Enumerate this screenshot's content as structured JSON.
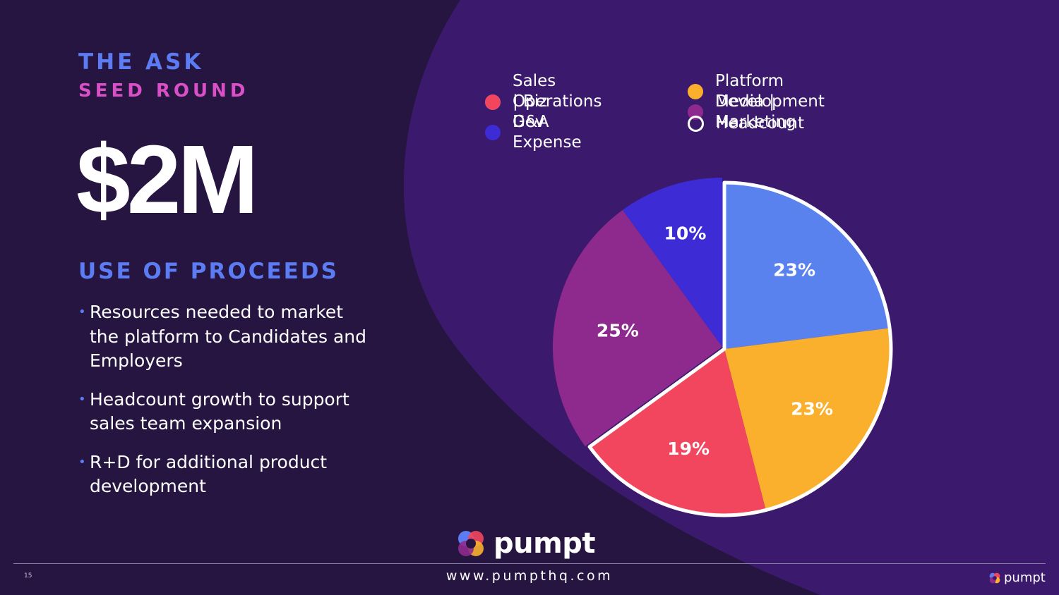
{
  "slide": {
    "title": "THE ASK",
    "subtitle": "SEED ROUND",
    "amount": "$2M",
    "proceeds_title": "USE OF PROCEEDS",
    "bullets": [
      "Resources needed to market the platform to Candidates and Employers",
      "Headcount growth to support sales team expansion",
      "R+D for additional product development"
    ],
    "bullet_marker": "•",
    "page_number": "15",
    "website": "www.pumpthq.com",
    "brand_name": "pumpt"
  },
  "colors": {
    "background": "#261541",
    "curve": "#3b1a6d",
    "accent_blue": "#5b7cf2",
    "accent_pink": "#d94fc6"
  },
  "legend": [
    {
      "label": "Sales | Biz Dev",
      "color": "#5a82ee",
      "hollow": false
    },
    {
      "label": "Operations",
      "color": "#f2465e",
      "hollow": false
    },
    {
      "label": "G&A Expense",
      "color": "#3d2cd6",
      "hollow": false
    },
    {
      "label": "Platform Development",
      "color": "#fbb02d",
      "hollow": false
    },
    {
      "label": "Media | Marketing",
      "color": "#8e2a8d",
      "hollow": false
    },
    {
      "label": "Headcount",
      "color": "#ffffff",
      "hollow": true
    }
  ],
  "chart_data": {
    "type": "pie",
    "title": "",
    "start_angle_deg": 0,
    "direction": "clockwise",
    "slices": [
      {
        "label": "Sales | Biz Dev",
        "value": 23,
        "display": "23%",
        "color": "#5a82ee",
        "headcount": true
      },
      {
        "label": "Platform Development",
        "value": 23,
        "display": "23%",
        "color": "#fbb02d",
        "headcount": true
      },
      {
        "label": "Operations",
        "value": 19,
        "display": "19%",
        "color": "#f2465e",
        "headcount": true
      },
      {
        "label": "Media | Marketing",
        "value": 25,
        "display": "25%",
        "color": "#8e2a8d",
        "headcount": false
      },
      {
        "label": "G&A Expense",
        "value": 10,
        "display": "10%",
        "color": "#3d2cd6",
        "headcount": false
      }
    ]
  }
}
